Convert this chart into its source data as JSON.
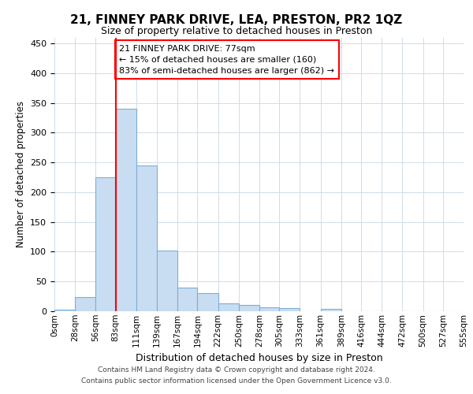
{
  "title": "21, FINNEY PARK DRIVE, LEA, PRESTON, PR2 1QZ",
  "subtitle": "Size of property relative to detached houses in Preston",
  "xlabel": "Distribution of detached houses by size in Preston",
  "ylabel": "Number of detached properties",
  "footer_line1": "Contains HM Land Registry data © Crown copyright and database right 2024.",
  "footer_line2": "Contains public sector information licensed under the Open Government Licence v3.0.",
  "bin_labels": [
    "0sqm",
    "28sqm",
    "56sqm",
    "83sqm",
    "111sqm",
    "139sqm",
    "167sqm",
    "194sqm",
    "222sqm",
    "250sqm",
    "278sqm",
    "305sqm",
    "333sqm",
    "361sqm",
    "389sqm",
    "416sqm",
    "444sqm",
    "472sqm",
    "500sqm",
    "527sqm",
    "555sqm"
  ],
  "bin_edges": [
    0,
    28,
    56,
    83,
    111,
    139,
    167,
    194,
    222,
    250,
    278,
    305,
    333,
    361,
    389,
    416,
    444,
    472,
    500,
    527,
    555
  ],
  "bar_values": [
    3,
    24,
    225,
    340,
    245,
    102,
    40,
    30,
    13,
    10,
    6,
    5,
    0,
    4,
    0,
    0,
    0,
    0,
    0,
    0
  ],
  "bar_color": "#c9ddf2",
  "bar_edge_color": "#7bafd4",
  "vline_x": 83,
  "vline_color": "red",
  "annotation_text": "21 FINNEY PARK DRIVE: 77sqm\n← 15% of detached houses are smaller (160)\n83% of semi-detached houses are larger (862) →",
  "annotation_box_color": "white",
  "annotation_box_edge": "red",
  "ylim": [
    0,
    460
  ],
  "grid_color": "#d0dce8"
}
